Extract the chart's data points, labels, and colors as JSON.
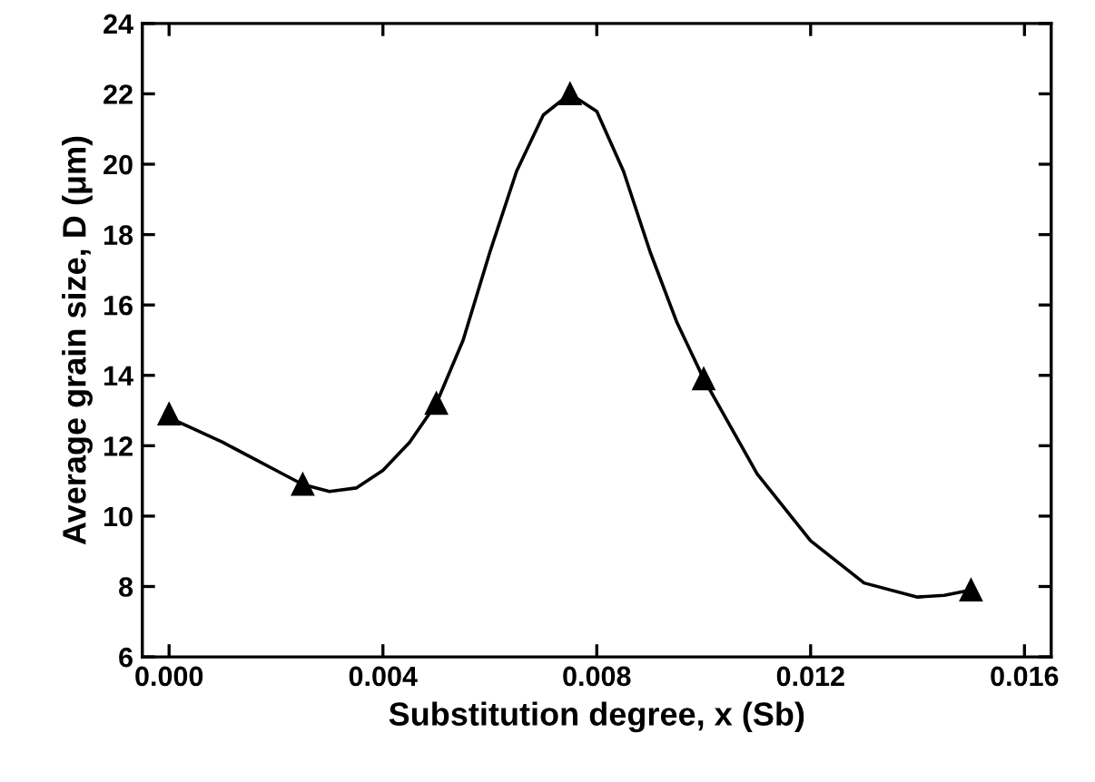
{
  "chart_data": {
    "type": "scatter",
    "xlabel": "Substitution degree, x (Sb)",
    "ylabel": "Average grain size, D (μm)",
    "xlim": [
      -0.0005,
      0.0165
    ],
    "ylim": [
      6,
      24
    ],
    "xticks": [
      {
        "value": 0,
        "label": "0.000"
      },
      {
        "value": 0.004,
        "label": "0.004"
      },
      {
        "value": 0.008,
        "label": "0.008"
      },
      {
        "value": 0.012,
        "label": "0.012"
      },
      {
        "value": 0.016,
        "label": "0.016"
      }
    ],
    "yticks": [
      6,
      8,
      10,
      12,
      14,
      16,
      18,
      20,
      22,
      24
    ],
    "grid": false,
    "series": [
      {
        "color": "#000000",
        "marker": "triangle",
        "x": [
          0,
          0.0025,
          0.005,
          0.0075,
          0.01,
          0.015
        ],
        "values": [
          12.9,
          10.9,
          13.2,
          22.0,
          13.9,
          7.9
        ]
      },
      {
        "type": "line",
        "color": "#000000",
        "marker": "none",
        "line_style": "solid",
        "x": [
          0,
          0.001,
          0.002,
          0.0025,
          0.003,
          0.0035,
          0.004,
          0.0045,
          0.005,
          0.0055,
          0.006,
          0.0065,
          0.007,
          0.0075,
          0.008,
          0.0085,
          0.009,
          0.0095,
          0.01,
          0.011,
          0.012,
          0.013,
          0.014,
          0.0145,
          0.015
        ],
        "values": [
          12.8,
          12.1,
          11.3,
          10.9,
          10.7,
          10.8,
          11.3,
          12.1,
          13.2,
          15.0,
          17.5,
          19.8,
          21.4,
          22.0,
          21.5,
          19.8,
          17.5,
          15.5,
          13.9,
          11.2,
          9.3,
          8.1,
          7.7,
          7.75,
          7.9
        ]
      }
    ]
  }
}
